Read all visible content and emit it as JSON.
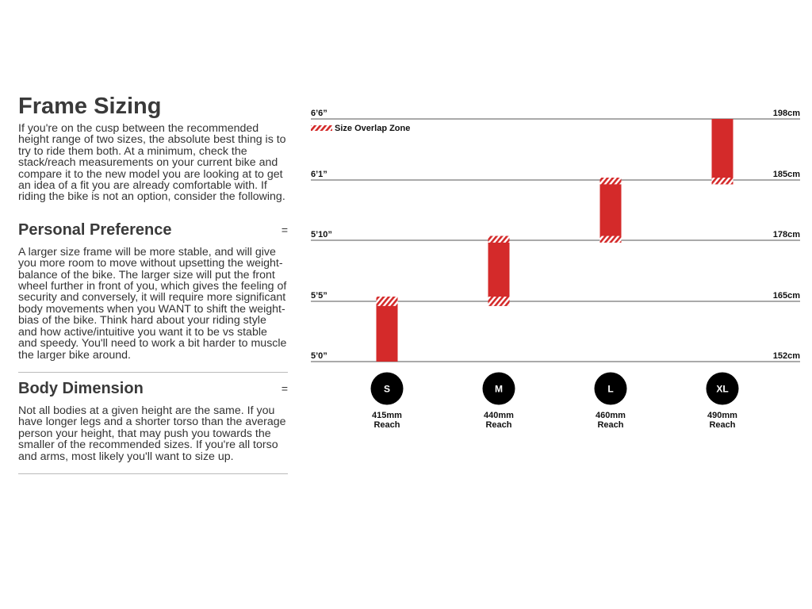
{
  "intro": {
    "title": "Frame Sizing",
    "body": "If you're on the cusp between the recommended height range of two sizes, the absolute best thing is to try to ride them both. At a minimum, check the stack/reach measurements on your current bike and compare it to the new model you are looking at to get an idea of a fit you are already comfortable with. If riding the bike is not an option, consider the following."
  },
  "sections": [
    {
      "title": "Personal Preference",
      "toggle": "=",
      "body": "A larger size frame will be more stable, and will give you more room to move without upsetting the weight-balance of the bike. The larger size will put the front wheel further in front of you, which gives the feeling of security and conversely, it will require more significant body movements when you WANT to shift the weight-bias of the bike. Think hard about your riding style and how active/intuitive you want it to be vs stable and speedy. You'll need to work a bit harder to muscle the larger bike around."
    },
    {
      "title": "Body Dimension",
      "toggle": "=",
      "body": "Not all bodies at a given height are the same. If you have longer legs and a shorter torso than the average person your height, that may push you towards the smaller of the recommended sizes. If you're all torso and arms, most likely you'll want to size up."
    }
  ],
  "chart_data": {
    "type": "bar",
    "title": "",
    "legend": {
      "label": "Size Overlap Zone",
      "placement": "top-left"
    },
    "gridlines": [
      {
        "cm": 152,
        "imperial": "5’0”",
        "metric": "152cm"
      },
      {
        "cm": 165,
        "imperial": "5’5”",
        "metric": "165cm"
      },
      {
        "cm": 178,
        "imperial": "5’10”",
        "metric": "178cm"
      },
      {
        "cm": 185,
        "imperial": "6’1”",
        "metric": "185cm"
      },
      {
        "cm": 198,
        "imperial": "6’6”",
        "metric": "198cm"
      }
    ],
    "sizes": [
      {
        "size": "S",
        "reach": "415mm",
        "reach_label": "Reach",
        "range_cm": [
          152,
          166
        ],
        "overlap_cm": [
          [
            164,
            166
          ]
        ]
      },
      {
        "size": "M",
        "reach": "440mm",
        "reach_label": "Reach",
        "range_cm": [
          164,
          178.5
        ],
        "overlap_cm": [
          [
            164,
            166
          ],
          [
            177.5,
            178.5
          ]
        ]
      },
      {
        "size": "L",
        "reach": "460mm",
        "reach_label": "Reach",
        "range_cm": [
          177.5,
          185.5
        ],
        "overlap_cm": [
          [
            177.5,
            178.5
          ],
          [
            184.5,
            185.5
          ]
        ]
      },
      {
        "size": "XL",
        "reach": "490mm",
        "reach_label": "Reach",
        "range_cm": [
          184.5,
          198
        ],
        "overlap_cm": [
          [
            184.5,
            185.5
          ]
        ]
      }
    ],
    "colors": {
      "bar": "#d42a2a",
      "grid": "#777777",
      "badge": "#000000"
    }
  }
}
